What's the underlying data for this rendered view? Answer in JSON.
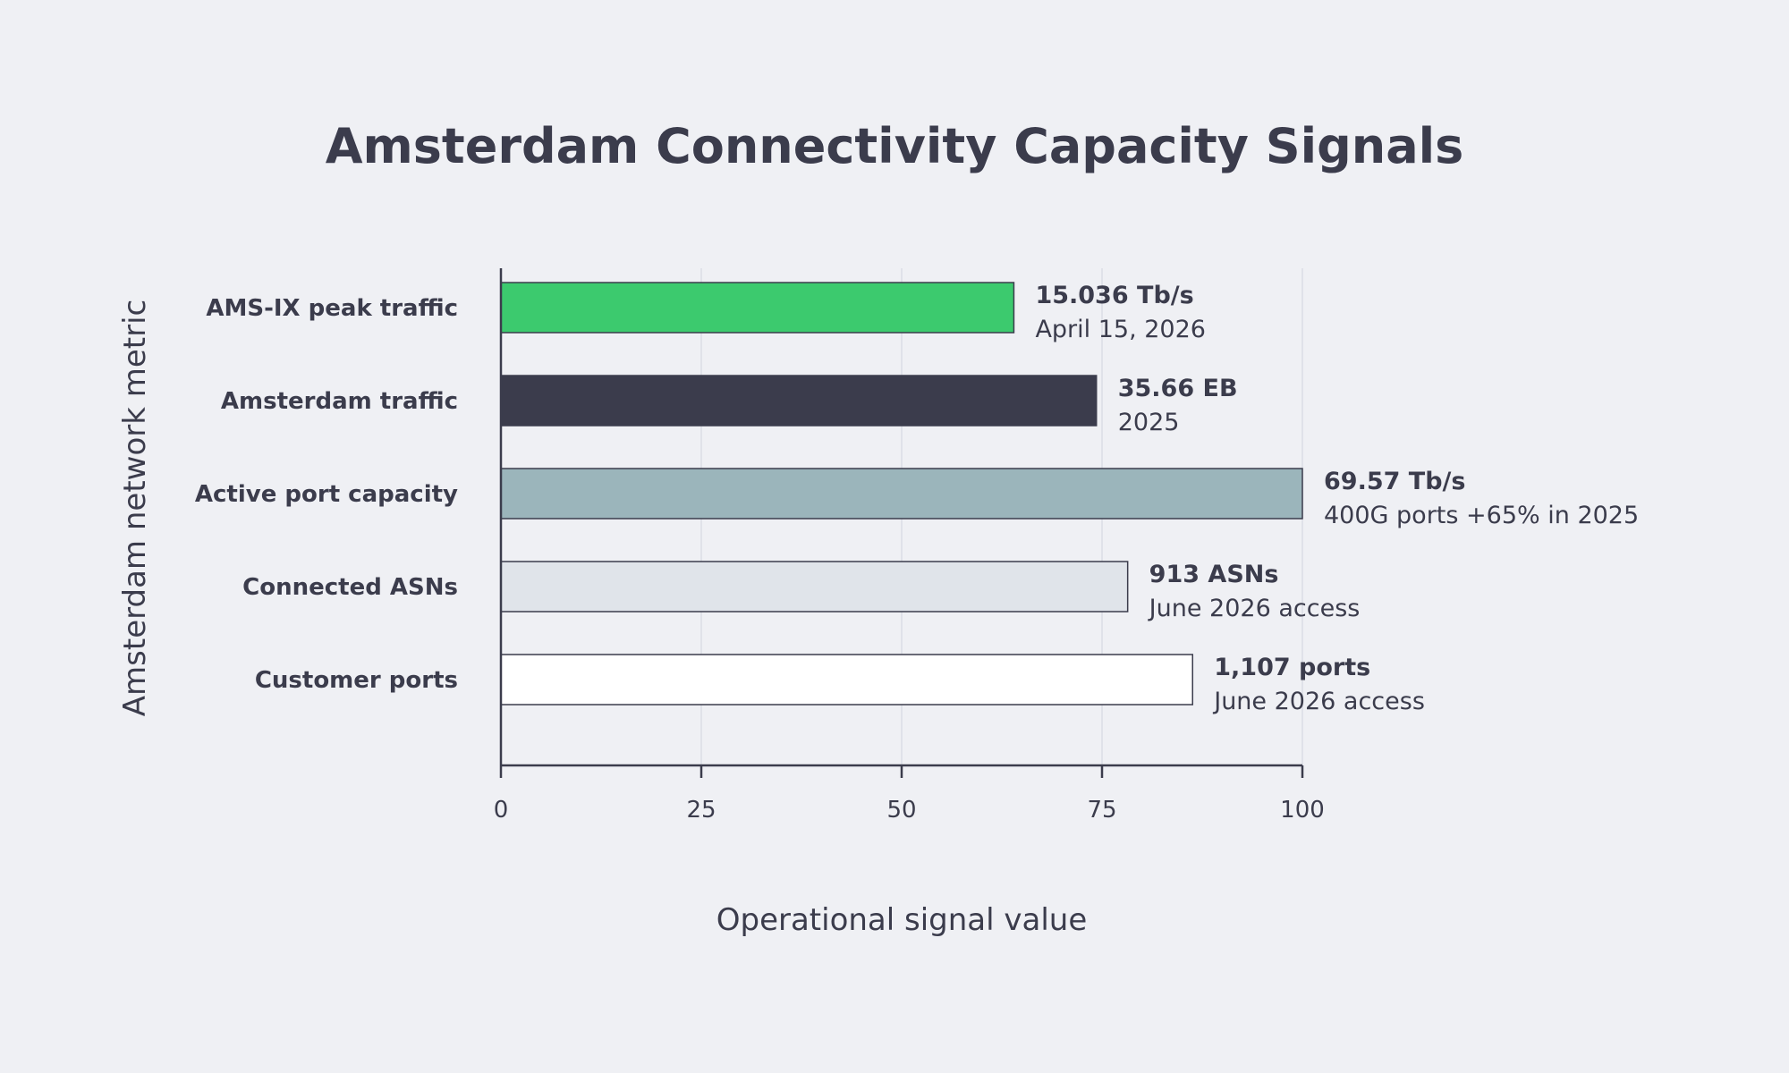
{
  "chart_data": {
    "type": "bar",
    "orientation": "horizontal",
    "title": "Amsterdam Connectivity Capacity Signals",
    "xlabel": "Operational signal value",
    "ylabel": "Amsterdam network metric",
    "xlim": [
      0,
      100
    ],
    "xticks": [
      "0",
      "25",
      "50",
      "75",
      "100"
    ],
    "grid": true,
    "legend": "none",
    "categories": [
      "AMS-IX peak traffic",
      "Amsterdam traffic",
      "Active port capacity",
      "Connected ASNs",
      "Customer ports"
    ],
    "values": [
      64,
      74.3,
      100,
      78.2,
      86.3
    ],
    "value_labels": [
      "15.036 Tb/s",
      "35.66 EB",
      "69.57 Tb/s",
      "913 ASNs",
      "1,107 ports"
    ],
    "notes": [
      "April 15, 2026",
      "2025",
      "400G ports +65% in 2025",
      "June 2026 access",
      "June 2026 access"
    ],
    "colors": [
      "#3cca6e",
      "#3b3c4c",
      "#9bb5bb",
      "#e0e4ea",
      "#ffffff"
    ],
    "text_color": "#3b3c4c",
    "background": "#eff0f4"
  }
}
